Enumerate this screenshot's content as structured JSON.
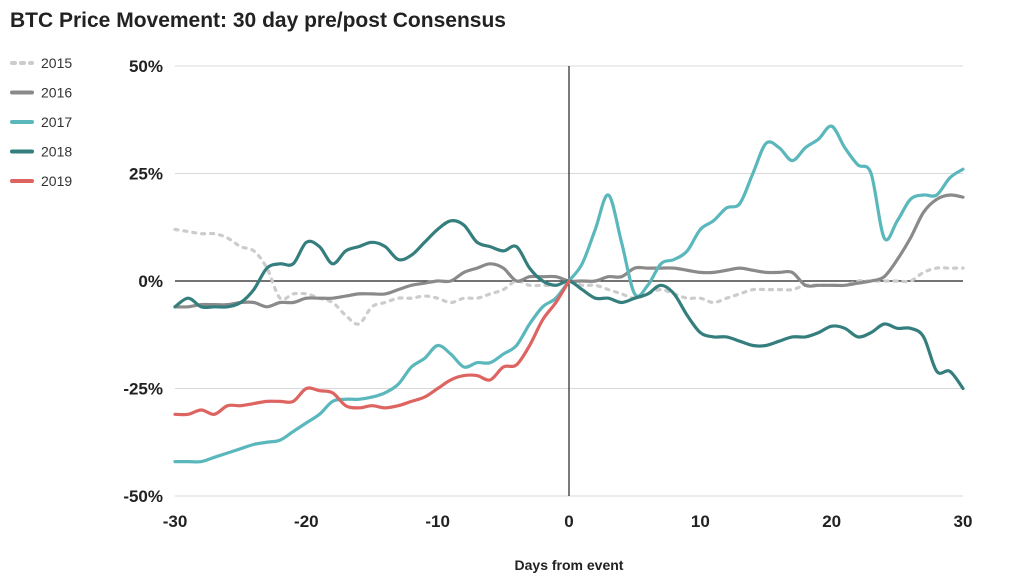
{
  "chart_data": {
    "type": "line",
    "title": "BTC Price Movement: 30 day pre/post Consensus",
    "xlabel": "Days from event",
    "ylabel": "",
    "xlim": [
      -30,
      30
    ],
    "ylim": [
      -50,
      50
    ],
    "x_ticks": [
      -30,
      -20,
      -10,
      0,
      10,
      20,
      30
    ],
    "x_tick_labels": [
      "-30",
      "-20",
      "-10",
      "0",
      "10",
      "20",
      "30"
    ],
    "y_ticks": [
      50,
      25,
      0,
      -25,
      -50
    ],
    "y_tick_labels": [
      "50%",
      "25%",
      "0%",
      "-25%",
      "-50%"
    ],
    "grid": "horizontal",
    "legend_position": "top-left",
    "series": [
      {
        "name": "2015",
        "color": "#cccccc",
        "style": "dotted",
        "points": [
          [
            -30,
            12
          ],
          [
            -29,
            11.5
          ],
          [
            -28,
            11
          ],
          [
            -27,
            11
          ],
          [
            -26,
            10
          ],
          [
            -25,
            8
          ],
          [
            -24,
            7
          ],
          [
            -23,
            3
          ],
          [
            -22,
            -4
          ],
          [
            -21,
            -3
          ],
          [
            -20,
            -3
          ],
          [
            -19,
            -4
          ],
          [
            -18,
            -5
          ],
          [
            -17,
            -8
          ],
          [
            -16,
            -10
          ],
          [
            -15,
            -6
          ],
          [
            -14,
            -5
          ],
          [
            -13,
            -4
          ],
          [
            -12,
            -4
          ],
          [
            -11,
            -3.5
          ],
          [
            -10,
            -4
          ],
          [
            -9,
            -5
          ],
          [
            -8,
            -4
          ],
          [
            -7,
            -4
          ],
          [
            -6,
            -3
          ],
          [
            -5,
            -2
          ],
          [
            -4,
            0
          ],
          [
            -3,
            -1
          ],
          [
            -2,
            -1
          ],
          [
            -1,
            -1
          ],
          [
            0,
            0
          ],
          [
            1,
            -1
          ],
          [
            2,
            -1
          ],
          [
            3,
            -2
          ],
          [
            4,
            -3
          ],
          [
            5,
            -4
          ],
          [
            6,
            -3
          ],
          [
            7,
            -2
          ],
          [
            8,
            -3
          ],
          [
            9,
            -4
          ],
          [
            10,
            -4
          ],
          [
            11,
            -5
          ],
          [
            12,
            -4
          ],
          [
            13,
            -3
          ],
          [
            14,
            -2
          ],
          [
            15,
            -2
          ],
          [
            16,
            -2
          ],
          [
            17,
            -2
          ],
          [
            18,
            -1
          ],
          [
            19,
            -1
          ],
          [
            20,
            -1
          ],
          [
            21,
            -1
          ],
          [
            22,
            0
          ],
          [
            23,
            0
          ],
          [
            24,
            0
          ],
          [
            25,
            0
          ],
          [
            26,
            0
          ],
          [
            27,
            2
          ],
          [
            28,
            3
          ],
          [
            29,
            3
          ],
          [
            30,
            3
          ]
        ]
      },
      {
        "name": "2016",
        "color": "#8a8a8a",
        "style": "solid",
        "points": [
          [
            -30,
            -6
          ],
          [
            -29,
            -6
          ],
          [
            -28,
            -5.5
          ],
          [
            -27,
            -5.5
          ],
          [
            -26,
            -5.5
          ],
          [
            -25,
            -5
          ],
          [
            -24,
            -5
          ],
          [
            -23,
            -6
          ],
          [
            -22,
            -5
          ],
          [
            -21,
            -5
          ],
          [
            -20,
            -4
          ],
          [
            -19,
            -4
          ],
          [
            -18,
            -4
          ],
          [
            -17,
            -3.5
          ],
          [
            -16,
            -3
          ],
          [
            -15,
            -3
          ],
          [
            -14,
            -3
          ],
          [
            -13,
            -2
          ],
          [
            -12,
            -1
          ],
          [
            -11,
            -0.5
          ],
          [
            -10,
            0
          ],
          [
            -9,
            0
          ],
          [
            -8,
            2
          ],
          [
            -7,
            3
          ],
          [
            -6,
            4
          ],
          [
            -5,
            3
          ],
          [
            -4,
            0
          ],
          [
            -3,
            1
          ],
          [
            -2,
            1
          ],
          [
            -1,
            1
          ],
          [
            0,
            0
          ],
          [
            1,
            0
          ],
          [
            2,
            0
          ],
          [
            3,
            1
          ],
          [
            4,
            1
          ],
          [
            5,
            3
          ],
          [
            6,
            3
          ],
          [
            7,
            3
          ],
          [
            8,
            3
          ],
          [
            9,
            2.5
          ],
          [
            10,
            2
          ],
          [
            11,
            2
          ],
          [
            12,
            2.5
          ],
          [
            13,
            3
          ],
          [
            14,
            2.5
          ],
          [
            15,
            2
          ],
          [
            16,
            2
          ],
          [
            17,
            2
          ],
          [
            18,
            -1
          ],
          [
            19,
            -1
          ],
          [
            20,
            -1
          ],
          [
            21,
            -1
          ],
          [
            22,
            -0.5
          ],
          [
            23,
            0
          ],
          [
            24,
            1
          ],
          [
            25,
            5
          ],
          [
            26,
            10
          ],
          [
            27,
            16
          ],
          [
            28,
            19
          ],
          [
            29,
            20
          ],
          [
            30,
            19.5
          ]
        ]
      },
      {
        "name": "2017",
        "color": "#5ab8bd",
        "style": "solid",
        "points": [
          [
            -30,
            -42
          ],
          [
            -29,
            -42
          ],
          [
            -28,
            -42
          ],
          [
            -27,
            -41
          ],
          [
            -26,
            -40
          ],
          [
            -25,
            -39
          ],
          [
            -24,
            -38
          ],
          [
            -23,
            -37.5
          ],
          [
            -22,
            -37
          ],
          [
            -21,
            -35
          ],
          [
            -20,
            -33
          ],
          [
            -19,
            -31
          ],
          [
            -18,
            -28
          ],
          [
            -17,
            -27.5
          ],
          [
            -16,
            -27.5
          ],
          [
            -15,
            -27
          ],
          [
            -14,
            -26
          ],
          [
            -13,
            -24
          ],
          [
            -12,
            -20
          ],
          [
            -11,
            -18
          ],
          [
            -10,
            -15
          ],
          [
            -9,
            -17
          ],
          [
            -8,
            -20
          ],
          [
            -7,
            -19
          ],
          [
            -6,
            -19
          ],
          [
            -5,
            -17
          ],
          [
            -4,
            -15
          ],
          [
            -3,
            -10
          ],
          [
            -2,
            -6
          ],
          [
            -1,
            -4
          ],
          [
            0,
            0
          ],
          [
            1,
            4
          ],
          [
            2,
            12
          ],
          [
            3,
            20
          ],
          [
            4,
            9
          ],
          [
            5,
            -3
          ],
          [
            6,
            -1
          ],
          [
            7,
            4
          ],
          [
            8,
            5
          ],
          [
            9,
            7
          ],
          [
            10,
            12
          ],
          [
            11,
            14
          ],
          [
            12,
            17
          ],
          [
            13,
            18
          ],
          [
            14,
            25
          ],
          [
            15,
            32
          ],
          [
            16,
            31
          ],
          [
            17,
            28
          ],
          [
            18,
            31
          ],
          [
            19,
            33
          ],
          [
            20,
            36
          ],
          [
            21,
            31
          ],
          [
            22,
            27
          ],
          [
            23,
            25
          ],
          [
            24,
            10
          ],
          [
            25,
            14
          ],
          [
            26,
            19
          ],
          [
            27,
            20
          ],
          [
            28,
            20
          ],
          [
            29,
            24
          ],
          [
            30,
            26
          ]
        ]
      },
      {
        "name": "2018",
        "color": "#357e7e",
        "style": "solid",
        "points": [
          [
            -30,
            -6
          ],
          [
            -29,
            -4
          ],
          [
            -28,
            -6
          ],
          [
            -27,
            -6
          ],
          [
            -26,
            -6
          ],
          [
            -25,
            -5
          ],
          [
            -24,
            -2
          ],
          [
            -23,
            3
          ],
          [
            -22,
            4
          ],
          [
            -21,
            4
          ],
          [
            -20,
            9
          ],
          [
            -19,
            8
          ],
          [
            -18,
            4
          ],
          [
            -17,
            7
          ],
          [
            -16,
            8
          ],
          [
            -15,
            9
          ],
          [
            -14,
            8
          ],
          [
            -13,
            5
          ],
          [
            -12,
            6
          ],
          [
            -11,
            9
          ],
          [
            -10,
            12
          ],
          [
            -9,
            14
          ],
          [
            -8,
            13
          ],
          [
            -7,
            9
          ],
          [
            -6,
            8
          ],
          [
            -5,
            7
          ],
          [
            -4,
            8
          ],
          [
            -3,
            3
          ],
          [
            -2,
            0
          ],
          [
            -1,
            -1
          ],
          [
            0,
            0
          ],
          [
            1,
            -2
          ],
          [
            2,
            -4
          ],
          [
            3,
            -4
          ],
          [
            4,
            -5
          ],
          [
            5,
            -4
          ],
          [
            6,
            -3
          ],
          [
            7,
            -1
          ],
          [
            8,
            -3
          ],
          [
            9,
            -8
          ],
          [
            10,
            -12
          ],
          [
            11,
            -13
          ],
          [
            12,
            -13
          ],
          [
            13,
            -14
          ],
          [
            14,
            -15
          ],
          [
            15,
            -15
          ],
          [
            16,
            -14
          ],
          [
            17,
            -13
          ],
          [
            18,
            -13
          ],
          [
            19,
            -12
          ],
          [
            20,
            -10.5
          ],
          [
            21,
            -11
          ],
          [
            22,
            -13
          ],
          [
            23,
            -12
          ],
          [
            24,
            -10
          ],
          [
            25,
            -11
          ],
          [
            26,
            -11
          ],
          [
            27,
            -13
          ],
          [
            28,
            -21
          ],
          [
            29,
            -21
          ],
          [
            30,
            -25
          ]
        ]
      },
      {
        "name": "2019",
        "color": "#dd6460",
        "style": "solid",
        "points": [
          [
            -30,
            -31
          ],
          [
            -29,
            -31
          ],
          [
            -28,
            -30
          ],
          [
            -27,
            -31
          ],
          [
            -26,
            -29
          ],
          [
            -25,
            -29
          ],
          [
            -24,
            -28.5
          ],
          [
            -23,
            -28
          ],
          [
            -22,
            -28
          ],
          [
            -21,
            -28
          ],
          [
            -20,
            -25
          ],
          [
            -19,
            -25.5
          ],
          [
            -18,
            -26
          ],
          [
            -17,
            -29
          ],
          [
            -16,
            -29.5
          ],
          [
            -15,
            -29
          ],
          [
            -14,
            -29.5
          ],
          [
            -13,
            -29
          ],
          [
            -12,
            -28
          ],
          [
            -11,
            -27
          ],
          [
            -10,
            -25
          ],
          [
            -9,
            -23
          ],
          [
            -8,
            -22
          ],
          [
            -7,
            -22
          ],
          [
            -6,
            -23
          ],
          [
            -5,
            -20
          ],
          [
            -4,
            -19.5
          ],
          [
            -3,
            -15
          ],
          [
            -2,
            -9
          ],
          [
            -1,
            -5
          ],
          [
            0,
            0
          ]
        ]
      }
    ]
  }
}
